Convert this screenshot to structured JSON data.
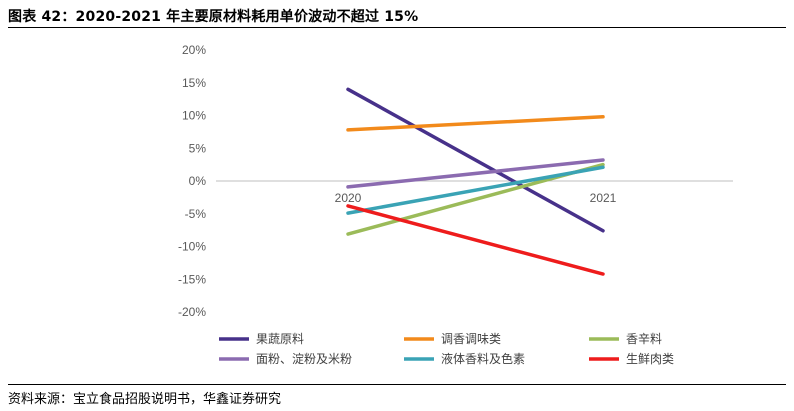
{
  "title": "图表 42：2020-2021 年主要原材料耗用单价波动不超过 15%",
  "source": "资料来源：宝立食品招股说明书，华鑫证券研究",
  "chart_data": {
    "type": "line",
    "categories": [
      "2020",
      "2021"
    ],
    "ylim": [
      -0.2,
      0.2
    ],
    "yticks": [
      0.2,
      0.15,
      0.1,
      0.05,
      0.0,
      -0.05,
      -0.1,
      -0.15,
      -0.2
    ],
    "ytick_labels": [
      "20%",
      "15%",
      "10%",
      "5%",
      "0%",
      "-5%",
      "-10%",
      "-15%",
      "-20%"
    ],
    "grid": false,
    "legend_position": "bottom",
    "series": [
      {
        "name": "果蔬原料",
        "values": [
          0.14,
          -0.076
        ],
        "color": "#47318a"
      },
      {
        "name": "调香调味类",
        "values": [
          0.078,
          0.098
        ],
        "color": "#f28a1b"
      },
      {
        "name": "香辛料",
        "values": [
          -0.081,
          0.025
        ],
        "color": "#9bbb59"
      },
      {
        "name": "面粉、淀粉及米粉",
        "values": [
          -0.009,
          0.032
        ],
        "color": "#8b6bb0"
      },
      {
        "name": "液体香料及色素",
        "values": [
          -0.049,
          0.021
        ],
        "color": "#3aa3b5"
      },
      {
        "name": "生鲜肉类",
        "values": [
          -0.038,
          -0.142
        ],
        "color": "#ee1c1c"
      }
    ]
  }
}
